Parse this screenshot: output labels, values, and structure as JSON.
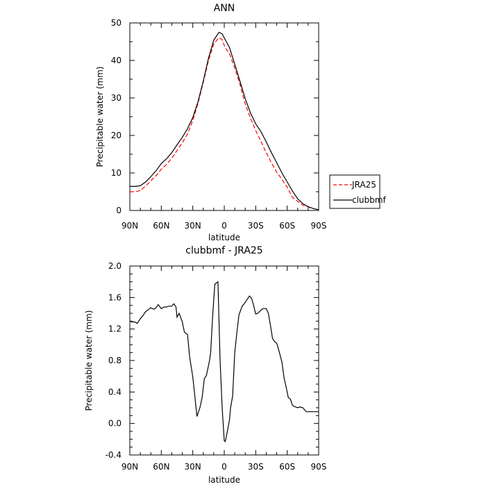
{
  "chart_data": [
    {
      "type": "line",
      "title": "ANN",
      "xlabel": "latitude",
      "ylabel": "Precipitable water (mm)",
      "xlim": [
        90,
        -90
      ],
      "ylim": [
        0,
        50
      ],
      "xticks": [
        90,
        60,
        30,
        0,
        -30,
        -60,
        -90
      ],
      "xtick_labels": [
        "90N",
        "60N",
        "30N",
        "0",
        "30S",
        "60S",
        "90S"
      ],
      "yticks": [
        0,
        10,
        20,
        30,
        40,
        50
      ],
      "ytick_labels": [
        "0",
        "10",
        "20",
        "30",
        "40",
        "50"
      ],
      "legend_position": "right-outside-bottom",
      "series": [
        {
          "name": "JRA25",
          "color": "#ff0000",
          "dash": "dashed",
          "x": [
            90,
            85,
            80,
            75,
            70,
            65,
            60,
            55,
            50,
            45,
            40,
            35,
            30,
            25,
            20,
            15,
            10,
            5,
            2,
            0,
            -2,
            -5,
            -10,
            -15,
            -20,
            -25,
            -30,
            -35,
            -40,
            -45,
            -50,
            -55,
            -60,
            -65,
            -70,
            -75,
            -80,
            -85,
            -90
          ],
          "y": [
            5.0,
            5.0,
            5.3,
            6.5,
            7.9,
            9.3,
            11.0,
            12.3,
            13.9,
            16.0,
            18.1,
            20.4,
            24.0,
            28.6,
            34.2,
            40.0,
            44.4,
            46.1,
            45.5,
            44.0,
            43.0,
            41.8,
            38.0,
            33.6,
            28.4,
            24.6,
            21.3,
            18.4,
            15.4,
            12.7,
            10.2,
            8.3,
            6.2,
            3.5,
            2.4,
            1.4,
            0.9,
            0.5,
            0.2
          ]
        },
        {
          "name": "clubbmf",
          "color": "#000000",
          "dash": "solid",
          "x": [
            90,
            85,
            80,
            75,
            70,
            65,
            60,
            55,
            50,
            45,
            40,
            35,
            30,
            25,
            20,
            15,
            10,
            5,
            2,
            0,
            -2,
            -5,
            -10,
            -15,
            -20,
            -25,
            -30,
            -35,
            -40,
            -45,
            -50,
            -55,
            -60,
            -65,
            -70,
            -75,
            -80,
            -85,
            -90
          ],
          "y": [
            6.4,
            6.4,
            6.6,
            7.6,
            9.0,
            10.6,
            12.5,
            13.8,
            15.4,
            17.5,
            19.5,
            21.8,
            24.8,
            29.0,
            34.5,
            40.6,
            45.4,
            47.5,
            47.1,
            46.0,
            45.0,
            43.4,
            39.0,
            34.4,
            29.8,
            26.0,
            23.1,
            21.0,
            18.3,
            15.4,
            12.7,
            10.0,
            7.6,
            5.2,
            3.1,
            1.8,
            1.0,
            0.5,
            0.2
          ]
        }
      ]
    },
    {
      "type": "line",
      "title": "clubbmf - JRA25",
      "xlabel": "latitude",
      "ylabel": "Precipitable water (mm)",
      "xlim": [
        90,
        -90
      ],
      "ylim": [
        -0.4,
        2.0
      ],
      "xticks": [
        90,
        60,
        30,
        0,
        -30,
        -60,
        -90
      ],
      "xtick_labels": [
        "90N",
        "60N",
        "30N",
        "0",
        "30S",
        "60S",
        "90S"
      ],
      "yticks": [
        -0.4,
        0.0,
        0.4,
        0.8,
        1.2,
        1.6,
        2.0
      ],
      "ytick_labels": [
        "-0.4",
        "0.0",
        "0.4",
        "0.8",
        "1.2",
        "1.6",
        "2.0"
      ],
      "series": [
        {
          "color": "#000000",
          "dash": "solid",
          "x": [
            90,
            88,
            85,
            83,
            80,
            78,
            75,
            72,
            70,
            67,
            65,
            63,
            60,
            57,
            55,
            53,
            50,
            48,
            46,
            45,
            43,
            40,
            38,
            35,
            33,
            30,
            28,
            26,
            23,
            21,
            19,
            17,
            14,
            13,
            11,
            9,
            6,
            4,
            2,
            0,
            -1,
            -3,
            -5,
            -6,
            -8,
            -10,
            -12,
            -14,
            -17,
            -19,
            -21,
            -24,
            -26,
            -28,
            -30,
            -32,
            -35,
            -37,
            -40,
            -42,
            -44,
            -46,
            -48,
            -50,
            -52,
            -55,
            -57,
            -59,
            -61,
            -63,
            -65,
            -68,
            -70,
            -72,
            -75,
            -78,
            -80,
            -82,
            -85,
            -87,
            -90
          ],
          "y": [
            1.3,
            1.29,
            1.29,
            1.27,
            1.33,
            1.36,
            1.42,
            1.45,
            1.47,
            1.45,
            1.47,
            1.51,
            1.46,
            1.48,
            1.48,
            1.49,
            1.49,
            1.52,
            1.48,
            1.35,
            1.4,
            1.29,
            1.16,
            1.13,
            0.85,
            0.59,
            0.34,
            0.09,
            0.21,
            0.34,
            0.57,
            0.61,
            0.8,
            0.9,
            1.38,
            1.77,
            1.8,
            0.8,
            0.2,
            -0.22,
            -0.23,
            -0.1,
            0.05,
            0.2,
            0.35,
            0.9,
            1.15,
            1.38,
            1.49,
            1.52,
            1.56,
            1.62,
            1.59,
            1.5,
            1.39,
            1.4,
            1.44,
            1.46,
            1.46,
            1.4,
            1.25,
            1.08,
            1.04,
            1.02,
            0.93,
            0.78,
            0.58,
            0.46,
            0.33,
            0.31,
            0.23,
            0.21,
            0.2,
            0.21,
            0.2,
            0.15,
            0.15,
            0.15,
            0.15,
            0.15,
            0.15
          ]
        }
      ]
    }
  ]
}
